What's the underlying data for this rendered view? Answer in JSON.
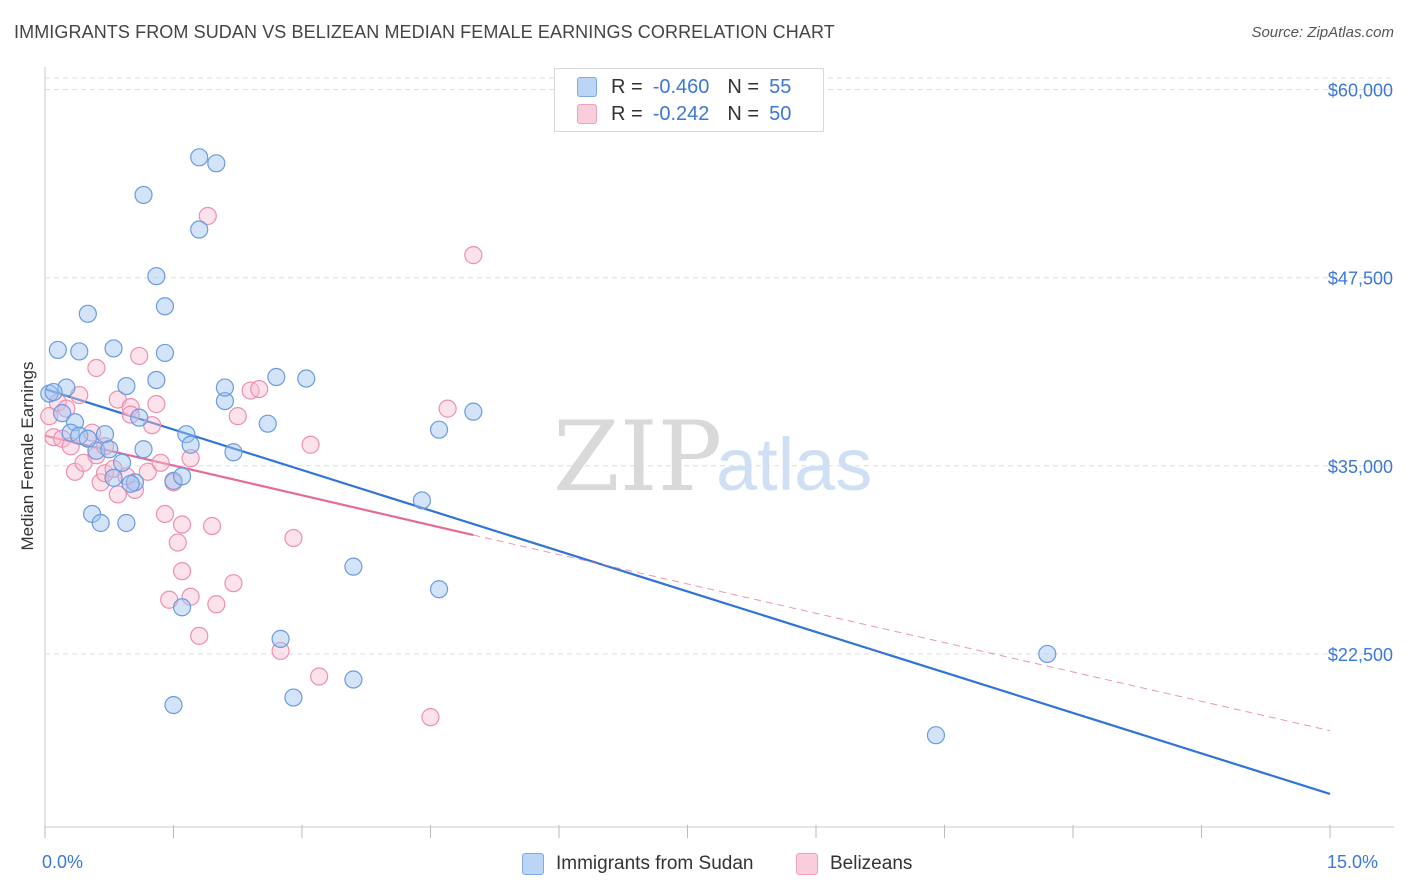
{
  "title": "IMMIGRANTS FROM SUDAN VS BELIZEAN MEDIAN FEMALE EARNINGS CORRELATION CHART",
  "source": "Source: ZipAtlas.com",
  "watermark": {
    "zip": "ZIP",
    "atlas": "atlas"
  },
  "legend_top": {
    "rows": [
      {
        "r_label": "R =",
        "r_value": "-0.460",
        "n_label": "N =",
        "n_value": "55",
        "color": "#7eaae8",
        "fill": "#bcd4f5"
      },
      {
        "r_label": "R =",
        "r_value": "-0.242",
        "n_label": "N =",
        "n_value": "50",
        "color": "#f0a0bb",
        "fill": "#f9cddb"
      }
    ]
  },
  "legend_bottom": {
    "sudan": "Immigrants from Sudan",
    "belize": "Belizeans"
  },
  "colors": {
    "sudan_stroke": "#6a9be0",
    "sudan_fill": "rgba(160,195,240,0.45)",
    "sudan_line": "#2f74d6",
    "belize_stroke": "#ee8fb0",
    "belize_fill": "rgba(248,190,210,0.45)",
    "belize_line": "#e56a94",
    "grid": "#dddddd",
    "tick_label": "#3b78d8"
  },
  "chart_data": {
    "type": "scatter",
    "title": "IMMIGRANTS FROM SUDAN VS BELIZEAN MEDIAN FEMALE EARNINGS CORRELATION CHART",
    "xlabel": "",
    "ylabel": "Median Female Earnings",
    "xlim": [
      0,
      15
    ],
    "ylim": [
      11000,
      61500
    ],
    "x_tick_labels": [
      "0.0%",
      "15.0%"
    ],
    "y_ticks": [
      22500,
      35000,
      47500,
      60000
    ],
    "y_tick_labels": [
      "$22,500",
      "$35,000",
      "$47,500",
      "$60,000"
    ],
    "grid": true,
    "series": [
      {
        "name": "Immigrants from Sudan",
        "R": -0.46,
        "N": 55,
        "trend": {
          "x": [
            0,
            15
          ],
          "y": [
            40100,
            13200
          ]
        },
        "points": [
          [
            0.05,
            39800
          ],
          [
            0.15,
            42700
          ],
          [
            0.25,
            40200
          ],
          [
            0.2,
            38500
          ],
          [
            0.35,
            37900
          ],
          [
            0.3,
            37200
          ],
          [
            0.5,
            45100
          ],
          [
            0.4,
            42600
          ],
          [
            0.55,
            31800
          ],
          [
            0.6,
            36000
          ],
          [
            0.7,
            37100
          ],
          [
            0.75,
            36100
          ],
          [
            0.8,
            42800
          ],
          [
            0.8,
            34200
          ],
          [
            0.95,
            31200
          ],
          [
            0.9,
            35200
          ],
          [
            0.95,
            40300
          ],
          [
            1.05,
            33900
          ],
          [
            1.1,
            38200
          ],
          [
            1.15,
            36100
          ],
          [
            1.15,
            53000
          ],
          [
            1.3,
            40700
          ],
          [
            1.3,
            47600
          ],
          [
            1.4,
            45600
          ],
          [
            1.4,
            42500
          ],
          [
            1.5,
            19100
          ],
          [
            1.5,
            34000
          ],
          [
            1.6,
            34300
          ],
          [
            1.6,
            25600
          ],
          [
            1.65,
            37100
          ],
          [
            1.8,
            50700
          ],
          [
            1.8,
            55500
          ],
          [
            2.0,
            55100
          ],
          [
            2.1,
            39300
          ],
          [
            2.1,
            40200
          ],
          [
            2.2,
            35900
          ],
          [
            2.6,
            37800
          ],
          [
            2.75,
            23500
          ],
          [
            2.7,
            40900
          ],
          [
            2.9,
            19600
          ],
          [
            3.05,
            40800
          ],
          [
            3.6,
            28300
          ],
          [
            3.6,
            20800
          ],
          [
            4.4,
            32700
          ],
          [
            4.6,
            26800
          ],
          [
            4.6,
            37400
          ],
          [
            5.0,
            38600
          ],
          [
            11.7,
            22500
          ],
          [
            10.4,
            17100
          ],
          [
            0.4,
            37000
          ],
          [
            0.65,
            31200
          ],
          [
            0.5,
            36800
          ],
          [
            1.0,
            33800
          ],
          [
            1.7,
            36400
          ],
          [
            0.1,
            39900
          ]
        ]
      },
      {
        "name": "Belizeans",
        "R": -0.242,
        "N": 50,
        "trend_solid": {
          "x": [
            0,
            5
          ],
          "y": [
            37000,
            30400
          ]
        },
        "trend_dashed": {
          "x": [
            5,
            15
          ],
          "y": [
            30400,
            17400
          ]
        },
        "points": [
          [
            0.05,
            38300
          ],
          [
            0.1,
            36900
          ],
          [
            0.15,
            39200
          ],
          [
            0.2,
            36800
          ],
          [
            0.3,
            36300
          ],
          [
            0.35,
            34600
          ],
          [
            0.4,
            39700
          ],
          [
            0.45,
            35200
          ],
          [
            0.6,
            35700
          ],
          [
            0.6,
            41500
          ],
          [
            0.65,
            33900
          ],
          [
            0.7,
            34500
          ],
          [
            0.8,
            34800
          ],
          [
            0.85,
            39400
          ],
          [
            0.85,
            33100
          ],
          [
            0.95,
            34300
          ],
          [
            1.0,
            38900
          ],
          [
            1.0,
            38400
          ],
          [
            1.05,
            33400
          ],
          [
            1.1,
            42300
          ],
          [
            1.2,
            34600
          ],
          [
            1.25,
            37700
          ],
          [
            1.3,
            39100
          ],
          [
            1.35,
            35200
          ],
          [
            1.4,
            31800
          ],
          [
            1.5,
            33900
          ],
          [
            1.55,
            29900
          ],
          [
            1.6,
            31100
          ],
          [
            1.6,
            28000
          ],
          [
            1.7,
            35500
          ],
          [
            1.7,
            26300
          ],
          [
            1.8,
            23700
          ],
          [
            1.9,
            51600
          ],
          [
            1.95,
            31000
          ],
          [
            2.0,
            25800
          ],
          [
            2.2,
            27200
          ],
          [
            2.25,
            38300
          ],
          [
            2.4,
            40000
          ],
          [
            2.5,
            40100
          ],
          [
            2.75,
            22700
          ],
          [
            2.9,
            30200
          ],
          [
            3.1,
            36400
          ],
          [
            3.2,
            21000
          ],
          [
            4.7,
            38800
          ],
          [
            4.5,
            18300
          ],
          [
            5.0,
            49000
          ],
          [
            0.55,
            37200
          ],
          [
            1.45,
            26100
          ],
          [
            0.25,
            38800
          ],
          [
            0.7,
            36300
          ]
        ]
      }
    ]
  }
}
